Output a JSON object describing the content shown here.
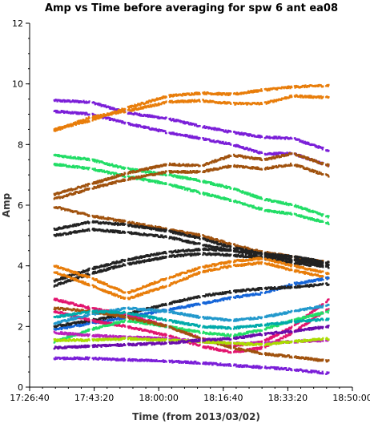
{
  "chart_data": {
    "type": "scatter",
    "title": "Amp vs Time before averaging for spw 6 ant ea08",
    "xlabel": "Time (from 2013/03/02)",
    "ylabel": "Amp",
    "x_ticks": [
      "17:26:40",
      "17:43:20",
      "18:00:00",
      "18:16:40",
      "18:33:20",
      "18:50:00"
    ],
    "y_ticks": [
      "0",
      "2",
      "4",
      "6",
      "8",
      "10",
      "12"
    ],
    "xlim": [
      "17:26:40",
      "18:50:00"
    ],
    "ylim": [
      0,
      12
    ],
    "grid": false,
    "legend": "none",
    "scan_gaps": [
      "17:42:30",
      "17:51:40",
      "18:02:20",
      "18:11:00",
      "18:19:00",
      "18:27:00",
      "18:34:40",
      "18:42:50"
    ],
    "series": [
      {
        "color": "#7B1FD8",
        "x": [
          "17:33:00",
          "17:42:30",
          "17:51:40",
          "18:02:20",
          "18:11:00",
          "18:19:00",
          "18:27:00",
          "18:34:40",
          "18:44:00"
        ],
        "y": [
          9.45,
          9.4,
          9.05,
          8.85,
          8.6,
          8.4,
          8.25,
          8.2,
          7.8
        ]
      },
      {
        "color": "#7B1FD8",
        "x": [
          "17:33:00",
          "17:42:30",
          "17:51:40",
          "18:02:20",
          "18:11:00",
          "18:19:00",
          "18:27:00",
          "18:34:40",
          "18:44:00"
        ],
        "y": [
          9.1,
          9.0,
          8.7,
          8.4,
          8.2,
          8.0,
          7.7,
          7.7,
          7.3
        ]
      },
      {
        "color": "#E87D0A",
        "x": [
          "17:33:00",
          "17:42:30",
          "17:51:40",
          "18:02:20",
          "18:11:00",
          "18:19:00",
          "18:27:00",
          "18:34:40",
          "18:44:00"
        ],
        "y": [
          8.5,
          8.8,
          9.2,
          9.6,
          9.7,
          9.65,
          9.8,
          9.9,
          9.95
        ]
      },
      {
        "color": "#E87D0A",
        "x": [
          "17:33:00",
          "17:42:30",
          "17:51:40",
          "18:02:20",
          "18:11:00",
          "18:19:00",
          "18:27:00",
          "18:34:40",
          "18:44:00"
        ],
        "y": [
          8.45,
          8.9,
          9.1,
          9.4,
          9.45,
          9.35,
          9.35,
          9.6,
          9.55
        ]
      },
      {
        "color": "#22DD66",
        "x": [
          "17:33:00",
          "17:42:30",
          "17:51:40",
          "18:02:20",
          "18:11:00",
          "18:19:00",
          "18:27:00",
          "18:34:40",
          "18:44:00"
        ],
        "y": [
          7.65,
          7.5,
          7.2,
          7.0,
          6.8,
          6.55,
          6.2,
          6.0,
          5.6
        ]
      },
      {
        "color": "#22DD66",
        "x": [
          "17:33:00",
          "17:42:30",
          "17:51:40",
          "18:02:20",
          "18:11:00",
          "18:19:00",
          "18:27:00",
          "18:34:40",
          "18:44:00"
        ],
        "y": [
          7.35,
          7.2,
          6.95,
          6.7,
          6.4,
          6.15,
          5.85,
          5.7,
          5.4
        ]
      },
      {
        "color": "#A0520E",
        "x": [
          "17:33:00",
          "17:42:30",
          "17:51:40",
          "18:02:20",
          "18:11:00",
          "18:19:00",
          "18:27:00",
          "18:34:40",
          "18:44:00"
        ],
        "y": [
          6.35,
          6.7,
          7.05,
          7.35,
          7.3,
          7.65,
          7.5,
          7.7,
          7.3
        ]
      },
      {
        "color": "#A0520E",
        "x": [
          "17:33:00",
          "17:42:30",
          "17:51:40",
          "18:02:20",
          "18:11:00",
          "18:19:00",
          "18:27:00",
          "18:34:40",
          "18:44:00"
        ],
        "y": [
          6.2,
          6.55,
          6.85,
          7.1,
          7.1,
          7.3,
          7.2,
          7.35,
          6.95
        ]
      },
      {
        "color": "#A0520E",
        "x": [
          "17:33:00",
          "17:42:30",
          "17:51:40",
          "18:02:20",
          "18:11:00",
          "18:19:00",
          "18:27:00",
          "18:34:40",
          "18:44:00"
        ],
        "y": [
          5.95,
          5.65,
          5.45,
          5.2,
          5.0,
          4.7,
          4.45,
          4.3,
          4.1
        ]
      },
      {
        "color": "#222222",
        "x": [
          "17:33:00",
          "17:42:30",
          "17:51:40",
          "18:02:20",
          "18:11:00",
          "18:19:00",
          "18:27:00",
          "18:34:40",
          "18:44:00"
        ],
        "y": [
          5.2,
          5.45,
          5.35,
          5.15,
          4.9,
          4.6,
          4.4,
          4.3,
          4.1
        ]
      },
      {
        "color": "#222222",
        "x": [
          "17:33:00",
          "17:42:30",
          "17:51:40",
          "18:02:20",
          "18:11:00",
          "18:19:00",
          "18:27:00",
          "18:34:40",
          "18:44:00"
        ],
        "y": [
          5.0,
          5.2,
          5.1,
          4.95,
          4.7,
          4.5,
          4.3,
          4.2,
          4.0
        ]
      },
      {
        "color": "#222222",
        "x": [
          "17:33:00",
          "17:42:30",
          "17:51:40",
          "18:02:20",
          "18:11:00",
          "18:19:00",
          "18:27:00",
          "18:34:40",
          "18:44:00"
        ],
        "y": [
          3.5,
          3.9,
          4.2,
          4.45,
          4.55,
          4.5,
          4.4,
          4.2,
          4.05
        ]
      },
      {
        "color": "#222222",
        "x": [
          "17:33:00",
          "17:42:30",
          "17:51:40",
          "18:02:20",
          "18:11:00",
          "18:19:00",
          "18:27:00",
          "18:34:40",
          "18:44:00"
        ],
        "y": [
          3.35,
          3.75,
          4.05,
          4.3,
          4.4,
          4.35,
          4.25,
          4.1,
          3.95
        ]
      },
      {
        "color": "#E87D0A",
        "x": [
          "17:33:00",
          "17:42:30",
          "17:51:40",
          "18:02:20",
          "18:11:00",
          "18:19:00",
          "18:27:00",
          "18:34:40",
          "18:44:00"
        ],
        "y": [
          4.0,
          3.6,
          3.1,
          3.6,
          3.95,
          4.15,
          4.25,
          4.0,
          3.75
        ]
      },
      {
        "color": "#E87D0A",
        "x": [
          "17:33:00",
          "17:42:30",
          "17:51:40",
          "18:02:20",
          "18:11:00",
          "18:19:00",
          "18:27:00",
          "18:34:40",
          "18:44:00"
        ],
        "y": [
          3.8,
          3.35,
          2.9,
          3.35,
          3.8,
          4.0,
          4.1,
          3.85,
          3.6
        ]
      },
      {
        "color": "#1565D8",
        "x": [
          "17:33:00",
          "17:42:30",
          "17:51:40",
          "18:02:20",
          "18:11:00",
          "18:19:00",
          "18:27:00",
          "18:34:40",
          "18:44:00"
        ],
        "y": [
          1.9,
          2.1,
          2.3,
          2.55,
          2.75,
          2.95,
          3.1,
          3.4,
          3.6
        ]
      },
      {
        "color": "#222222",
        "x": [
          "17:33:00",
          "17:42:30",
          "17:51:40",
          "18:02:20",
          "18:11:00",
          "18:19:00",
          "18:27:00",
          "18:34:40",
          "18:44:00"
        ],
        "y": [
          2.0,
          2.2,
          2.4,
          2.75,
          3.0,
          3.15,
          3.25,
          3.3,
          3.4
        ]
      },
      {
        "color": "#E2156F",
        "x": [
          "17:33:00",
          "17:42:30",
          "17:51:40",
          "18:02:20",
          "18:11:00",
          "18:19:00",
          "18:27:00",
          "18:34:40",
          "18:44:00"
        ],
        "y": [
          2.9,
          2.6,
          2.4,
          2.0,
          1.6,
          1.35,
          1.5,
          2.0,
          2.9
        ]
      },
      {
        "color": "#E2156F",
        "x": [
          "17:33:00",
          "17:42:30",
          "17:51:40",
          "18:02:20",
          "18:11:00",
          "18:19:00",
          "18:27:00",
          "18:34:40",
          "18:44:00"
        ],
        "y": [
          2.5,
          2.2,
          2.0,
          1.7,
          1.35,
          1.15,
          1.3,
          1.8,
          2.6
        ]
      },
      {
        "color": "#2299CC",
        "x": [
          "17:33:00",
          "17:42:30",
          "17:51:40",
          "18:02:20",
          "18:11:00",
          "18:19:00",
          "18:27:00",
          "18:34:40",
          "18:44:00"
        ],
        "y": [
          2.1,
          2.4,
          2.6,
          2.5,
          2.3,
          2.2,
          2.3,
          2.5,
          2.7
        ]
      },
      {
        "color": "#22DD66",
        "x": [
          "17:33:00",
          "17:42:30",
          "17:51:40",
          "18:02:20",
          "18:11:00",
          "18:19:00",
          "18:27:00",
          "18:34:40",
          "18:44:00"
        ],
        "y": [
          1.5,
          1.9,
          2.2,
          2.0,
          1.8,
          1.7,
          1.9,
          2.2,
          2.5
        ]
      },
      {
        "color": "#A0520E",
        "x": [
          "17:33:00",
          "17:42:30",
          "17:51:40",
          "18:02:20",
          "18:11:00",
          "18:19:00",
          "18:27:00",
          "18:34:40",
          "18:44:00"
        ],
        "y": [
          2.6,
          2.5,
          2.3,
          2.0,
          1.6,
          1.3,
          1.1,
          1.0,
          0.85
        ]
      },
      {
        "color": "#BB22BB",
        "x": [
          "17:33:00",
          "17:42:30",
          "17:51:40",
          "18:02:20",
          "18:11:00",
          "18:19:00",
          "18:27:00",
          "18:34:40",
          "18:44:00"
        ],
        "y": [
          1.8,
          1.7,
          1.65,
          1.6,
          1.5,
          1.45,
          1.45,
          1.5,
          1.55
        ]
      },
      {
        "color": "#AADD00",
        "x": [
          "17:33:00",
          "17:42:30",
          "17:51:40",
          "18:02:20",
          "18:11:00",
          "18:19:00",
          "18:27:00",
          "18:34:40",
          "18:44:00"
        ],
        "y": [
          1.55,
          1.55,
          1.6,
          1.55,
          1.5,
          1.45,
          1.4,
          1.5,
          1.6
        ]
      },
      {
        "color": "#7B1FD8",
        "x": [
          "17:33:00",
          "17:42:30",
          "17:51:40",
          "18:02:20",
          "18:11:00",
          "18:19:00",
          "18:27:00",
          "18:34:40",
          "18:44:00"
        ],
        "y": [
          0.95,
          0.95,
          0.9,
          0.85,
          0.8,
          0.72,
          0.65,
          0.58,
          0.45
        ]
      },
      {
        "color": "#00AAAA",
        "x": [
          "17:33:00",
          "17:42:30",
          "17:51:40",
          "18:02:20",
          "18:11:00",
          "18:19:00",
          "18:27:00",
          "18:34:40",
          "18:44:00"
        ],
        "y": [
          2.3,
          2.5,
          2.45,
          2.2,
          2.0,
          1.95,
          2.05,
          2.15,
          2.25
        ]
      },
      {
        "color": "#6A0DAD",
        "x": [
          "17:33:00",
          "17:42:30",
          "17:51:40",
          "18:02:20",
          "18:11:00",
          "18:19:00",
          "18:27:00",
          "18:34:40",
          "18:44:00"
        ],
        "y": [
          1.3,
          1.35,
          1.4,
          1.45,
          1.55,
          1.6,
          1.75,
          1.85,
          2.0
        ]
      }
    ]
  }
}
